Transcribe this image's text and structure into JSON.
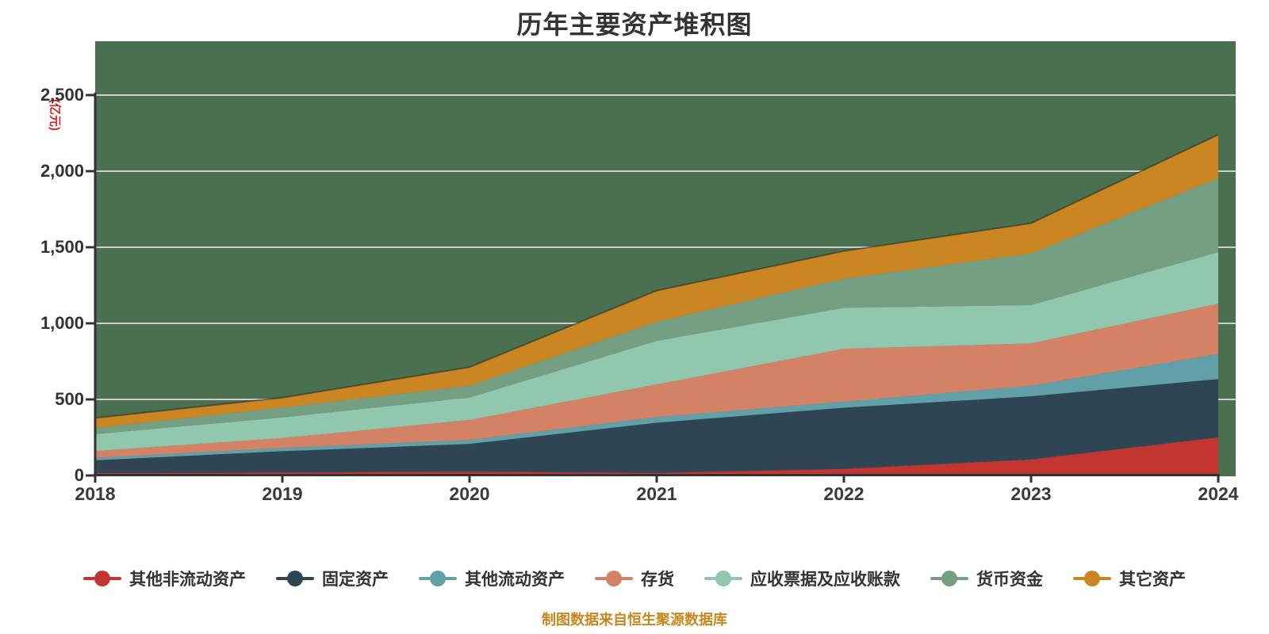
{
  "title": "历年主要资产堆积图",
  "y_axis_unit": "(亿元)",
  "footer": "制图数据来自恒生聚源数据库",
  "colors": {
    "plot_background": "#4a7050",
    "gridline": "#cccccc",
    "axis": "#333333",
    "title_text": "#333333",
    "unit_text": "#d8281e",
    "footer_text": "#c8861e",
    "legend_text": "#333333",
    "top_edge_stroke": "#1f1f1f"
  },
  "chart_data": {
    "type": "area",
    "stacked": true,
    "title": "历年主要资产堆积图",
    "ylabel": "(亿元)",
    "xlabel": "",
    "x": [
      "2018",
      "2019",
      "2020",
      "2021",
      "2022",
      "2023",
      "2024"
    ],
    "ylim": [
      0,
      2500
    ],
    "y_ticks": [
      0,
      500,
      1000,
      1500,
      2000,
      2500
    ],
    "y_tick_labels": [
      "0",
      "500",
      "1,000",
      "1,500",
      "2,000",
      "2,500"
    ],
    "grid": true,
    "legend_position": "bottom",
    "series": [
      {
        "name": "其他非流动资产",
        "color": "#c23531",
        "values": [
          15,
          20,
          25,
          17,
          43,
          105,
          250
        ]
      },
      {
        "name": "固定资产",
        "color": "#2f4554",
        "values": [
          85,
          140,
          183,
          330,
          403,
          416,
          384
        ]
      },
      {
        "name": "其他流动资产",
        "color": "#61a0a8",
        "values": [
          16,
          22,
          26,
          38,
          40,
          69,
          165
        ]
      },
      {
        "name": "存货",
        "color": "#d48265",
        "values": [
          45,
          64,
          131,
          214,
          347,
          278,
          330
        ]
      },
      {
        "name": "应收票据及应收账款",
        "color": "#91c7ae",
        "values": [
          111,
          136,
          147,
          286,
          269,
          252,
          339
        ]
      },
      {
        "name": "货币资金",
        "color": "#749f83",
        "values": [
          40,
          64,
          78,
          125,
          191,
          339,
          486
        ]
      },
      {
        "name": "其它资产",
        "color": "#ca8622",
        "values": [
          66,
          66,
          122,
          205,
          182,
          199,
          286
        ]
      }
    ],
    "stack_totals": [
      378,
      512,
      712,
      1215,
      1475,
      1658,
      2240
    ]
  }
}
